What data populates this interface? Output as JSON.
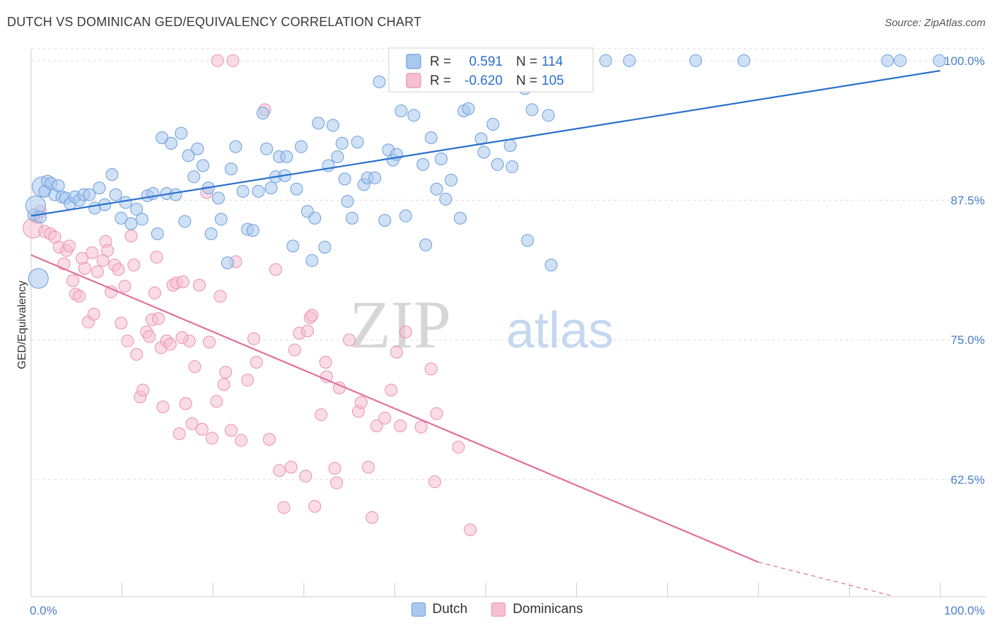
{
  "title": "DUTCH VS DOMINICAN GED/EQUIVALENCY CORRELATION CHART",
  "source": "Source: ZipAtlas.com",
  "watermark": {
    "zip": "ZIP",
    "atlas": "atlas"
  },
  "colors": {
    "dutch": "#6b9edc",
    "dutch_fill": "#a9c8ee",
    "dutch_line": "#2a6fcb",
    "dominican": "#ec8fb0",
    "dominican_fill": "#f6bfd2",
    "dominican_line": "#e0709a",
    "tick": "#4a7fc7",
    "grid": "#dddddd"
  },
  "legend": {
    "r_label": "R =",
    "n_label": "N =",
    "dutch": {
      "r": "0.591",
      "n": "114"
    },
    "dominican": {
      "r": "-0.620",
      "n": "105"
    }
  },
  "bottom_legend": {
    "dutch": "Dutch",
    "dominican": "Dominicans"
  },
  "chart_data": {
    "type": "scatter",
    "title": "DUTCH VS DOMINICAN GED/EQUIVALENCY CORRELATION CHART",
    "xlabel": "",
    "ylabel": "GED/Equivalency",
    "xlim": [
      0,
      100
    ],
    "ylim": [
      52,
      101
    ],
    "x_tick_labels": [
      "0.0%",
      "100.0%"
    ],
    "y_ticks": [
      62.5,
      75.0,
      87.5,
      100.0
    ],
    "y_tick_labels": [
      "62.5%",
      "75.0%",
      "87.5%",
      "100.0%"
    ],
    "grid": true,
    "series": [
      {
        "name": "Dutch",
        "r": 0.591,
        "n": 114,
        "trend": {
          "x": [
            0,
            100
          ],
          "y": [
            86.1,
            99.1
          ]
        },
        "points": [
          [
            0.3,
            86.2
          ],
          [
            0.5,
            87.0
          ],
          [
            0.8,
            80.5
          ],
          [
            1.2,
            88.7
          ],
          [
            1.5,
            88.3
          ],
          [
            1.8,
            89.2
          ],
          [
            2.2,
            89.0
          ],
          [
            2.6,
            88.0
          ],
          [
            3.0,
            88.8
          ],
          [
            3.4,
            87.8
          ],
          [
            3.8,
            87.7
          ],
          [
            4.3,
            87.2
          ],
          [
            4.8,
            87.8
          ],
          [
            5.3,
            87.5
          ],
          [
            5.8,
            88.0
          ],
          [
            6.4,
            88.0
          ],
          [
            7.0,
            86.8
          ],
          [
            7.5,
            88.6
          ],
          [
            8.1,
            87.1
          ],
          [
            8.9,
            89.8
          ],
          [
            9.3,
            88.0
          ],
          [
            9.9,
            85.9
          ],
          [
            10.4,
            87.3
          ],
          [
            11.0,
            85.4
          ],
          [
            11.6,
            86.7
          ],
          [
            12.2,
            85.8
          ],
          [
            12.8,
            87.9
          ],
          [
            13.4,
            88.1
          ],
          [
            13.9,
            84.5
          ],
          [
            14.4,
            93.1
          ],
          [
            14.9,
            88.1
          ],
          [
            15.4,
            92.6
          ],
          [
            15.9,
            88.0
          ],
          [
            16.5,
            93.5
          ],
          [
            16.9,
            85.6
          ],
          [
            17.3,
            91.5
          ],
          [
            17.9,
            89.6
          ],
          [
            18.3,
            92.1
          ],
          [
            18.9,
            90.6
          ],
          [
            19.5,
            88.6
          ],
          [
            19.8,
            84.5
          ],
          [
            20.6,
            87.7
          ],
          [
            20.9,
            85.8
          ],
          [
            21.6,
            81.9
          ],
          [
            22.0,
            90.3
          ],
          [
            22.5,
            92.3
          ],
          [
            23.3,
            88.3
          ],
          [
            23.8,
            84.9
          ],
          [
            24.4,
            84.8
          ],
          [
            25.0,
            88.3
          ],
          [
            25.5,
            95.3
          ],
          [
            25.9,
            92.1
          ],
          [
            26.4,
            88.6
          ],
          [
            26.9,
            89.6
          ],
          [
            27.3,
            91.4
          ],
          [
            27.9,
            89.7
          ],
          [
            28.1,
            91.4
          ],
          [
            28.8,
            83.4
          ],
          [
            29.2,
            88.5
          ],
          [
            29.7,
            92.3
          ],
          [
            30.4,
            86.5
          ],
          [
            30.9,
            82.1
          ],
          [
            31.2,
            85.9
          ],
          [
            31.6,
            94.4
          ],
          [
            32.3,
            83.3
          ],
          [
            32.7,
            90.6
          ],
          [
            33.2,
            94.2
          ],
          [
            33.7,
            91.4
          ],
          [
            34.2,
            92.6
          ],
          [
            34.5,
            89.4
          ],
          [
            34.8,
            87.4
          ],
          [
            35.3,
            85.9
          ],
          [
            35.9,
            92.7
          ],
          [
            36.6,
            88.9
          ],
          [
            37.0,
            89.5
          ],
          [
            37.8,
            89.5
          ],
          [
            38.3,
            98.1
          ],
          [
            38.9,
            85.7
          ],
          [
            39.3,
            92.0
          ],
          [
            39.8,
            91.1
          ],
          [
            40.2,
            91.6
          ],
          [
            40.7,
            95.5
          ],
          [
            41.2,
            86.1
          ],
          [
            42.1,
            95.1
          ],
          [
            43.1,
            90.7
          ],
          [
            43.4,
            83.5
          ],
          [
            44.0,
            93.1
          ],
          [
            44.6,
            88.5
          ],
          [
            45.1,
            91.2
          ],
          [
            45.6,
            87.6
          ],
          [
            46.2,
            89.3
          ],
          [
            47.2,
            85.9
          ],
          [
            47.6,
            95.5
          ],
          [
            48.1,
            95.7
          ],
          [
            49.5,
            93.0
          ],
          [
            49.8,
            91.8
          ],
          [
            50.8,
            94.3
          ],
          [
            51.3,
            90.7
          ],
          [
            52.1,
            98.9
          ],
          [
            52.7,
            92.4
          ],
          [
            52.9,
            90.5
          ],
          [
            54.3,
            97.5
          ],
          [
            54.6,
            83.9
          ],
          [
            55.1,
            95.6
          ],
          [
            56.9,
            95.1
          ],
          [
            57.2,
            81.7
          ],
          [
            63.2,
            100.0
          ],
          [
            65.8,
            100.0
          ],
          [
            73.1,
            100.0
          ],
          [
            78.4,
            100.0
          ],
          [
            94.2,
            100.0
          ],
          [
            95.6,
            100.0
          ],
          [
            99.9,
            100.0
          ],
          [
            1.0,
            86.0
          ]
        ]
      },
      {
        "name": "Dominicans",
        "r": -0.62,
        "n": 105,
        "trend": {
          "x": [
            0,
            80
          ],
          "y": [
            82.6,
            55.1
          ]
        },
        "trend_dashed": {
          "x": [
            80,
            94.5
          ],
          "y": [
            55.1,
            50.5
          ]
        },
        "points": [
          [
            0.2,
            85.0
          ],
          [
            0.6,
            86.0
          ],
          [
            1.0,
            86.5
          ],
          [
            1.5,
            84.7
          ],
          [
            2.1,
            84.5
          ],
          [
            2.6,
            84.2
          ],
          [
            3.1,
            83.3
          ],
          [
            3.6,
            81.8
          ],
          [
            3.9,
            83.0
          ],
          [
            4.2,
            83.4
          ],
          [
            4.6,
            80.3
          ],
          [
            4.9,
            79.1
          ],
          [
            5.3,
            78.9
          ],
          [
            5.6,
            82.3
          ],
          [
            5.9,
            81.4
          ],
          [
            6.3,
            76.6
          ],
          [
            6.9,
            77.3
          ],
          [
            7.3,
            81.1
          ],
          [
            7.9,
            82.1
          ],
          [
            8.2,
            83.8
          ],
          [
            8.4,
            83.0
          ],
          [
            8.8,
            79.3
          ],
          [
            9.2,
            81.7
          ],
          [
            9.6,
            81.3
          ],
          [
            9.9,
            76.5
          ],
          [
            10.3,
            79.8
          ],
          [
            10.6,
            74.9
          ],
          [
            11.0,
            84.3
          ],
          [
            11.3,
            81.7
          ],
          [
            11.6,
            73.7
          ],
          [
            12.0,
            69.9
          ],
          [
            12.3,
            70.5
          ],
          [
            12.7,
            75.7
          ],
          [
            13.0,
            75.3
          ],
          [
            13.3,
            76.8
          ],
          [
            13.6,
            79.2
          ],
          [
            14.0,
            76.9
          ],
          [
            14.3,
            74.3
          ],
          [
            14.5,
            69.0
          ],
          [
            14.9,
            74.9
          ],
          [
            15.3,
            74.6
          ],
          [
            15.6,
            79.9
          ],
          [
            16.0,
            80.1
          ],
          [
            16.3,
            66.6
          ],
          [
            16.7,
            80.2
          ],
          [
            17.0,
            69.3
          ],
          [
            17.4,
            74.9
          ],
          [
            17.7,
            67.5
          ],
          [
            18.0,
            72.6
          ],
          [
            18.5,
            79.9
          ],
          [
            18.8,
            67.0
          ],
          [
            19.3,
            88.2
          ],
          [
            19.6,
            74.8
          ],
          [
            19.9,
            66.2
          ],
          [
            20.4,
            69.5
          ],
          [
            20.8,
            78.9
          ],
          [
            21.2,
            71.0
          ],
          [
            21.4,
            72.1
          ],
          [
            22.0,
            66.9
          ],
          [
            22.5,
            82.0
          ],
          [
            23.1,
            66.0
          ],
          [
            23.8,
            71.4
          ],
          [
            24.5,
            75.1
          ],
          [
            24.8,
            73.0
          ],
          [
            25.7,
            95.6
          ],
          [
            26.2,
            66.1
          ],
          [
            26.9,
            81.3
          ],
          [
            27.3,
            63.3
          ],
          [
            27.8,
            60.0
          ],
          [
            28.6,
            63.6
          ],
          [
            29.0,
            74.1
          ],
          [
            29.5,
            75.6
          ],
          [
            30.2,
            62.8
          ],
          [
            30.4,
            75.8
          ],
          [
            30.7,
            77.0
          ],
          [
            30.9,
            77.2
          ],
          [
            31.2,
            60.1
          ],
          [
            31.9,
            68.3
          ],
          [
            32.4,
            73.0
          ],
          [
            32.5,
            71.7
          ],
          [
            33.4,
            63.5
          ],
          [
            33.6,
            62.2
          ],
          [
            33.9,
            70.7
          ],
          [
            35.0,
            75.0
          ],
          [
            36.0,
            68.6
          ],
          [
            36.3,
            69.4
          ],
          [
            37.1,
            63.6
          ],
          [
            37.5,
            59.1
          ],
          [
            38.0,
            67.3
          ],
          [
            38.9,
            68.0
          ],
          [
            39.6,
            70.5
          ],
          [
            40.2,
            73.9
          ],
          [
            40.6,
            67.3
          ],
          [
            41.2,
            75.7
          ],
          [
            42.9,
            67.2
          ],
          [
            44.0,
            72.4
          ],
          [
            44.4,
            62.3
          ],
          [
            44.6,
            68.4
          ],
          [
            47.0,
            65.4
          ],
          [
            48.3,
            58.0
          ],
          [
            20.5,
            100.0
          ],
          [
            22.2,
            100.0
          ],
          [
            13.8,
            82.4
          ],
          [
            6.7,
            82.8
          ],
          [
            16.6,
            75.2
          ]
        ]
      }
    ]
  }
}
